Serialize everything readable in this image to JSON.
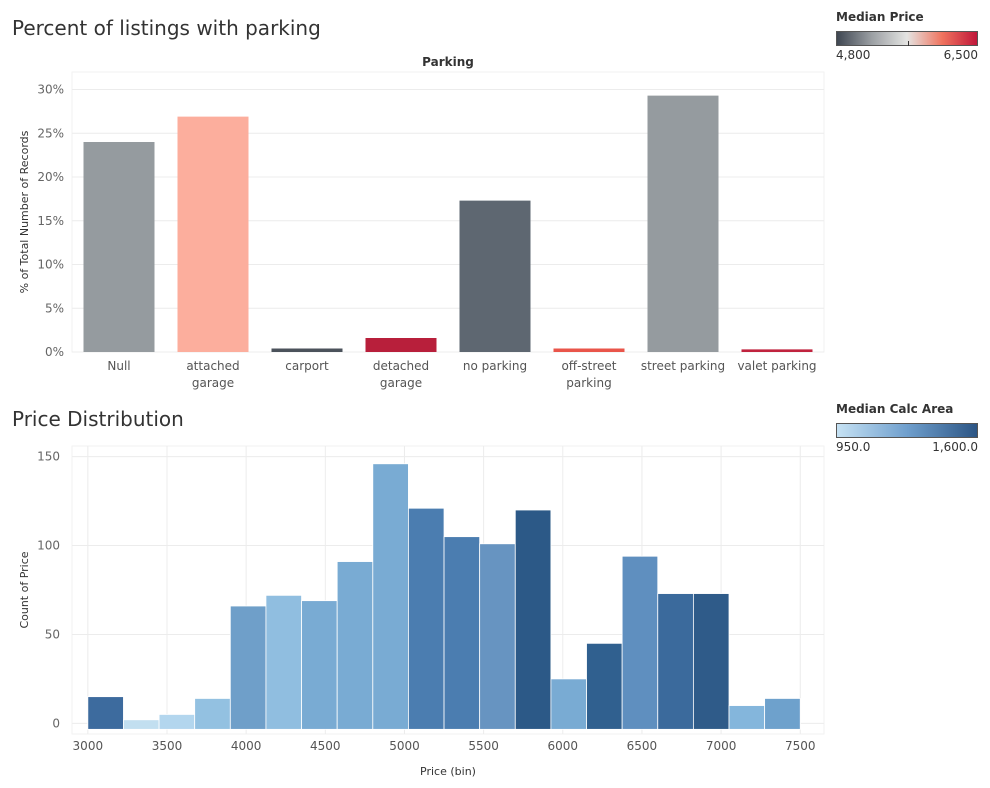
{
  "chart_data": [
    {
      "type": "bar",
      "title": "Percent of listings with parking",
      "header": "Parking",
      "ylabel": "% of Total Number of Records",
      "xlabel": "",
      "categories": [
        "Null",
        "attached garage",
        "carport",
        "detached garage",
        "no parking",
        "off-street parking",
        "street parking",
        "valet parking"
      ],
      "category_lines": [
        [
          "Null"
        ],
        [
          "attached",
          "garage"
        ],
        [
          "carport"
        ],
        [
          "detached",
          "garage"
        ],
        [
          "no parking"
        ],
        [
          "off-street",
          "parking"
        ],
        [
          "street parking"
        ],
        [
          "valet parking"
        ]
      ],
      "values": [
        24.0,
        26.9,
        0.4,
        1.6,
        17.3,
        0.4,
        29.3,
        0.3
      ],
      "colors": [
        "#959b9f",
        "#fcae9d",
        "#4b525b",
        "#b81f3b",
        "#5e6771",
        "#e9554a",
        "#959b9f",
        "#c0233e"
      ],
      "ylim": [
        0,
        32
      ],
      "yticks": [
        0,
        5,
        10,
        15,
        20,
        25,
        30
      ],
      "ytick_labels": [
        "0%",
        "5%",
        "10%",
        "15%",
        "20%",
        "25%",
        "30%"
      ],
      "legend": {
        "title": "Median Price",
        "min_label": "4,800",
        "max_label": "6,500",
        "colors": [
          "#3f4752",
          "#9ca0a4",
          "#e4e4e2",
          "#f0745f",
          "#c0173a"
        ]
      }
    },
    {
      "type": "bar",
      "title": "Price Distribution",
      "xlabel": "Price (bin)",
      "ylabel": "Count of Price",
      "bin_width": 225,
      "bins": [
        {
          "x": 3000,
          "count": 15,
          "color": "#3d6b9e"
        },
        {
          "x": 3225,
          "count": 2,
          "color": "#c2dff0"
        },
        {
          "x": 3450,
          "count": 5,
          "color": "#b3d6ee"
        },
        {
          "x": 3675,
          "count": 14,
          "color": "#93c1e1"
        },
        {
          "x": 3900,
          "count": 66,
          "color": "#6f9fc9"
        },
        {
          "x": 4125,
          "count": 72,
          "color": "#90bee0"
        },
        {
          "x": 4350,
          "count": 69,
          "color": "#79abd3"
        },
        {
          "x": 4575,
          "count": 91,
          "color": "#79abd3"
        },
        {
          "x": 4800,
          "count": 146,
          "color": "#79abd3"
        },
        {
          "x": 5025,
          "count": 121,
          "color": "#4b7db0"
        },
        {
          "x": 5250,
          "count": 105,
          "color": "#4b7db0"
        },
        {
          "x": 5475,
          "count": 101,
          "color": "#6794c1"
        },
        {
          "x": 5700,
          "count": 120,
          "color": "#2c5987"
        },
        {
          "x": 5925,
          "count": 25,
          "color": "#79abd3"
        },
        {
          "x": 6150,
          "count": 45,
          "color": "#30608f"
        },
        {
          "x": 6375,
          "count": 94,
          "color": "#5f8fbf"
        },
        {
          "x": 6600,
          "count": 73,
          "color": "#3b6a9c"
        },
        {
          "x": 6825,
          "count": 73,
          "color": "#2f5b89"
        },
        {
          "x": 7050,
          "count": 10,
          "color": "#84b6dc"
        },
        {
          "x": 7275,
          "count": 14,
          "color": "#6ea1cc"
        }
      ],
      "xticks": [
        3000,
        3500,
        4000,
        4500,
        5000,
        5500,
        6000,
        6500,
        7000,
        7500
      ],
      "xlim": [
        2900,
        7650
      ],
      "ylim": [
        -6,
        156
      ],
      "yticks": [
        0,
        50,
        100,
        150
      ],
      "legend": {
        "title": "Median Calc Area",
        "min_label": "950.0",
        "max_label": "1,600.0",
        "colors": [
          "#c6e2f4",
          "#6f9fcd",
          "#2c5584"
        ]
      }
    }
  ]
}
